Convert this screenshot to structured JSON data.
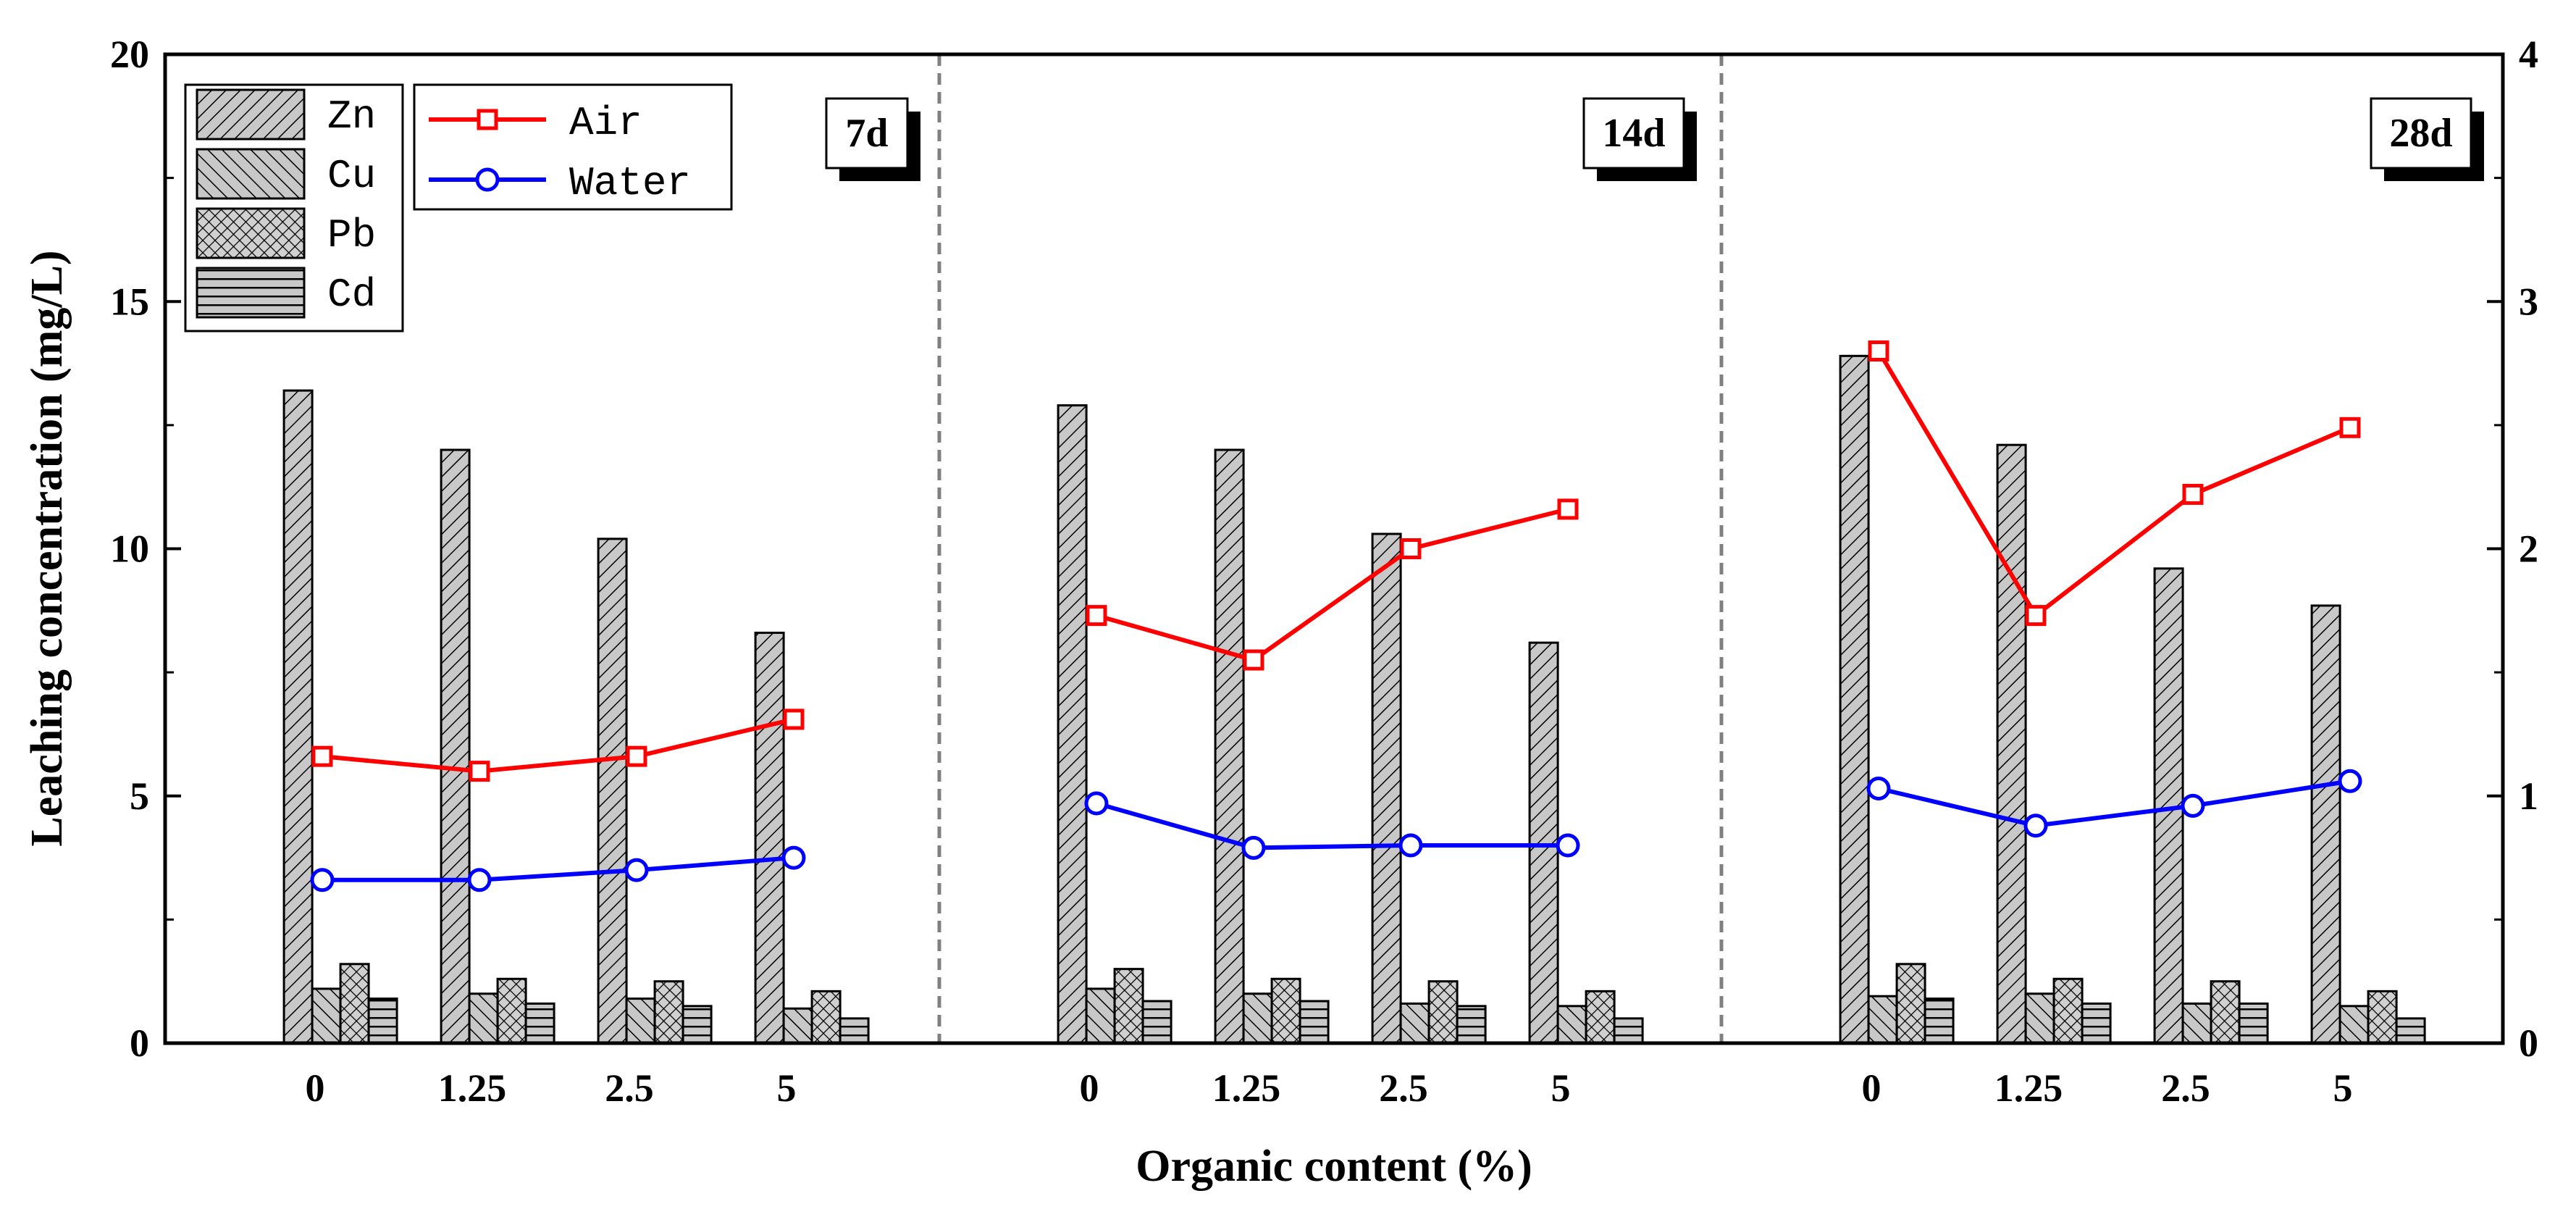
{
  "chart_data": {
    "type": "bar",
    "title": "",
    "xlabel": "Organic content (%)",
    "ylabel": "Leaching concentration (mg/L)",
    "ylim": [
      0,
      20
    ],
    "y_ticks": [
      "0",
      "5",
      "10",
      "15",
      "20"
    ],
    "y2lim": [
      0,
      4
    ],
    "y2_ticks": [
      "0",
      "1",
      "2",
      "3",
      "4"
    ],
    "categories": [
      "0",
      "1.25",
      "2.5",
      "5"
    ],
    "bar_series": [
      {
        "name": "Zn",
        "pattern": "zn"
      },
      {
        "name": "Cu",
        "pattern": "cu"
      },
      {
        "name": "Pb",
        "pattern": "pb"
      },
      {
        "name": "Cd",
        "pattern": "cd"
      }
    ],
    "line_series": [
      {
        "name": "Air",
        "color": "#ff0000",
        "marker": "square",
        "axis": "right"
      },
      {
        "name": "Water",
        "color": "#0000ff",
        "marker": "circle",
        "axis": "right"
      }
    ],
    "panels": [
      {
        "label": "7d",
        "bars": {
          "Zn": [
            13.2,
            12.0,
            10.2,
            8.3
          ],
          "Cu": [
            1.1,
            1.0,
            0.9,
            0.7
          ],
          "Pb": [
            1.6,
            1.3,
            1.25,
            1.05
          ],
          "Cd": [
            0.9,
            0.8,
            0.75,
            0.5
          ]
        },
        "lines": {
          "Air": [
            1.16,
            1.1,
            1.16,
            1.31
          ],
          "Water": [
            0.66,
            0.66,
            0.7,
            0.75
          ]
        }
      },
      {
        "label": "14d",
        "bars": {
          "Zn": [
            12.9,
            12.0,
            10.3,
            8.1
          ],
          "Cu": [
            1.1,
            1.0,
            0.8,
            0.75
          ],
          "Pb": [
            1.5,
            1.3,
            1.25,
            1.05
          ],
          "Cd": [
            0.85,
            0.85,
            0.75,
            0.5
          ]
        },
        "lines": {
          "Air": [
            1.73,
            1.55,
            2.0,
            2.16
          ],
          "Water": [
            0.97,
            0.79,
            0.8,
            0.8
          ]
        }
      },
      {
        "label": "28d",
        "bars": {
          "Zn": [
            13.9,
            12.1,
            9.6,
            8.85
          ],
          "Cu": [
            0.95,
            1.0,
            0.8,
            0.75
          ],
          "Pb": [
            1.6,
            1.3,
            1.25,
            1.05
          ],
          "Cd": [
            0.9,
            0.8,
            0.8,
            0.5
          ]
        },
        "lines": {
          "Air": [
            2.8,
            1.73,
            2.22,
            2.49
          ],
          "Water": [
            1.03,
            0.88,
            0.96,
            1.06
          ]
        }
      }
    ],
    "legend": {
      "position": "top-left",
      "bar_entries": [
        "Zn",
        "Cu",
        "Pb",
        "Cd"
      ],
      "line_entries": [
        "Air",
        "Water"
      ]
    }
  }
}
